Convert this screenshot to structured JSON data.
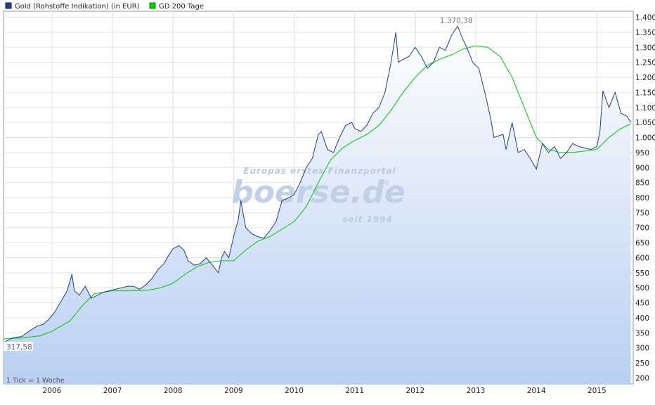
{
  "chart_data": {
    "type": "line",
    "legend": [
      {
        "name": "Gold (Rohstoffe Indikation) (in EUR)",
        "color": "#1c3f8c"
      },
      {
        "name": "GD 200 Tage",
        "color": "#00cc00"
      }
    ],
    "legend_placement": "top-left",
    "x_tick_labels": [
      "2006",
      "2007",
      "2008",
      "2009",
      "2010",
      "2011",
      "2012",
      "2013",
      "2014",
      "2015"
    ],
    "xlim": [
      2005.2,
      2015.6
    ],
    "y_tick_labels": [
      "200",
      "250",
      "300",
      "350",
      "400",
      "450",
      "500",
      "550",
      "600",
      "650",
      "700",
      "750",
      "800",
      "850",
      "900",
      "950",
      "1.000",
      "1.050",
      "1.100",
      "1.150",
      "1.200",
      "1.250",
      "1.300",
      "1.350",
      "1.400"
    ],
    "ylim": [
      180,
      1420
    ],
    "y_axis_side": "right",
    "grid": true,
    "annotations": {
      "max_label": "1.370,38",
      "start_label": "317,58",
      "tick_note": "1 Tick = 1 Woche"
    },
    "watermark": {
      "top": "Europas erstes Finanzportal",
      "brand": "boerse.de",
      "bottom": "seit 1994",
      "mark": "®"
    },
    "series": [
      {
        "name": "Gold (Rohstoffe Indikation) (in EUR)",
        "x": [
          2005.2,
          2005.35,
          2005.5,
          2005.62,
          2005.75,
          2005.85,
          2005.95,
          2006.05,
          2006.15,
          2006.25,
          2006.33,
          2006.37,
          2006.45,
          2006.55,
          2006.65,
          2006.75,
          2006.85,
          2006.95,
          2007.05,
          2007.15,
          2007.25,
          2007.35,
          2007.45,
          2007.55,
          2007.65,
          2007.75,
          2007.85,
          2007.92,
          2008.0,
          2008.1,
          2008.18,
          2008.25,
          2008.35,
          2008.45,
          2008.55,
          2008.65,
          2008.75,
          2008.8,
          2008.85,
          2008.92,
          2009.0,
          2009.08,
          2009.12,
          2009.2,
          2009.3,
          2009.4,
          2009.5,
          2009.6,
          2009.7,
          2009.8,
          2009.92,
          2010.0,
          2010.1,
          2010.2,
          2010.3,
          2010.4,
          2010.45,
          2010.55,
          2010.65,
          2010.75,
          2010.85,
          2010.95,
          2011.0,
          2011.1,
          2011.2,
          2011.3,
          2011.4,
          2011.5,
          2011.6,
          2011.68,
          2011.72,
          2011.8,
          2011.9,
          2012.0,
          2012.1,
          2012.2,
          2012.3,
          2012.4,
          2012.5,
          2012.6,
          2012.7,
          2012.78,
          2012.85,
          2012.95,
          2013.05,
          2013.15,
          2013.25,
          2013.3,
          2013.45,
          2013.5,
          2013.6,
          2013.7,
          2013.8,
          2013.9,
          2014.0,
          2014.1,
          2014.2,
          2014.3,
          2014.4,
          2014.5,
          2014.6,
          2014.7,
          2014.8,
          2014.9,
          2015.0,
          2015.05,
          2015.1,
          2015.2,
          2015.3,
          2015.4,
          2015.5,
          2015.56
        ],
        "y": [
          317.58,
          333,
          338,
          355,
          372,
          378,
          395,
          420,
          455,
          490,
          545,
          490,
          475,
          505,
          465,
          475,
          485,
          490,
          495,
          500,
          505,
          505,
          495,
          510,
          530,
          560,
          580,
          605,
          630,
          640,
          625,
          590,
          575,
          580,
          600,
          575,
          550,
          600,
          620,
          600,
          670,
          730,
          790,
          700,
          680,
          670,
          665,
          690,
          720,
          790,
          800,
          810,
          850,
          900,
          930,
          1010,
          1020,
          960,
          950,
          1000,
          1040,
          1050,
          1030,
          1020,
          1040,
          1080,
          1100,
          1150,
          1250,
          1350,
          1250,
          1260,
          1270,
          1300,
          1270,
          1230,
          1250,
          1300,
          1290,
          1340,
          1370.38,
          1330,
          1300,
          1250,
          1230,
          1150,
          1060,
          1000,
          1010,
          960,
          1050,
          950,
          960,
          930,
          895,
          980,
          950,
          970,
          930,
          950,
          980,
          970,
          965,
          960,
          970,
          1020,
          1155,
          1100,
          1150,
          1080,
          1070,
          1050
        ]
      },
      {
        "name": "GD 200 Tage",
        "x": [
          2005.2,
          2005.5,
          2005.8,
          2006.0,
          2006.3,
          2006.5,
          2006.7,
          2007.0,
          2007.3,
          2007.6,
          2007.8,
          2008.0,
          2008.2,
          2008.4,
          2008.6,
          2008.8,
          2009.0,
          2009.2,
          2009.4,
          2009.6,
          2009.8,
          2010.0,
          2010.2,
          2010.4,
          2010.6,
          2010.8,
          2011.0,
          2011.2,
          2011.4,
          2011.6,
          2011.8,
          2012.0,
          2012.2,
          2012.4,
          2012.6,
          2012.8,
          2013.0,
          2013.2,
          2013.4,
          2013.6,
          2013.8,
          2014.0,
          2014.2,
          2014.4,
          2014.6,
          2014.8,
          2015.0,
          2015.2,
          2015.4,
          2015.56
        ],
        "y": [
          330,
          333,
          340,
          355,
          390,
          440,
          480,
          490,
          490,
          492,
          500,
          515,
          545,
          570,
          585,
          590,
          590,
          625,
          655,
          670,
          695,
          720,
          770,
          850,
          925,
          965,
          990,
          1010,
          1040,
          1090,
          1150,
          1200,
          1240,
          1260,
          1275,
          1295,
          1305,
          1300,
          1270,
          1200,
          1100,
          1000,
          960,
          950,
          950,
          955,
          960,
          1000,
          1030,
          1045
        ]
      }
    ]
  }
}
